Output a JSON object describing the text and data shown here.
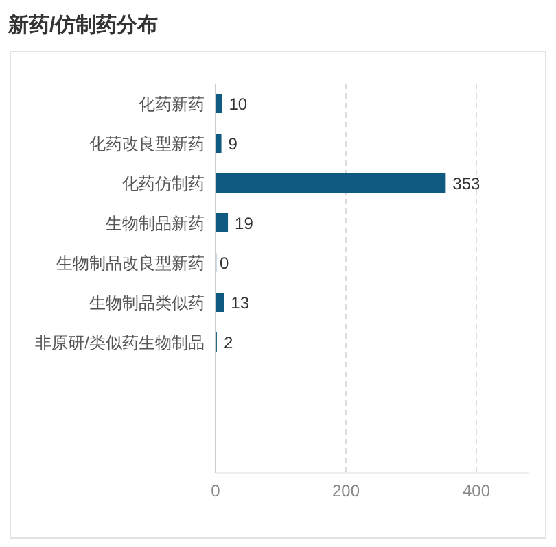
{
  "chart_data": {
    "type": "bar",
    "orientation": "horizontal",
    "title": "新药/仿制药分布",
    "categories": [
      "化药新药",
      "化药改良型新药",
      "化药仿制药",
      "生物制品新药",
      "生物制品改良型新药",
      "生物制品类似药",
      "非原研/类似药生物制品"
    ],
    "values": [
      10,
      9,
      353,
      19,
      0,
      13,
      2
    ],
    "color": "#0e5a80",
    "xlim": [
      0,
      480
    ],
    "xticks": [
      0,
      200,
      400
    ],
    "grid": "x",
    "data_labels": true
  }
}
